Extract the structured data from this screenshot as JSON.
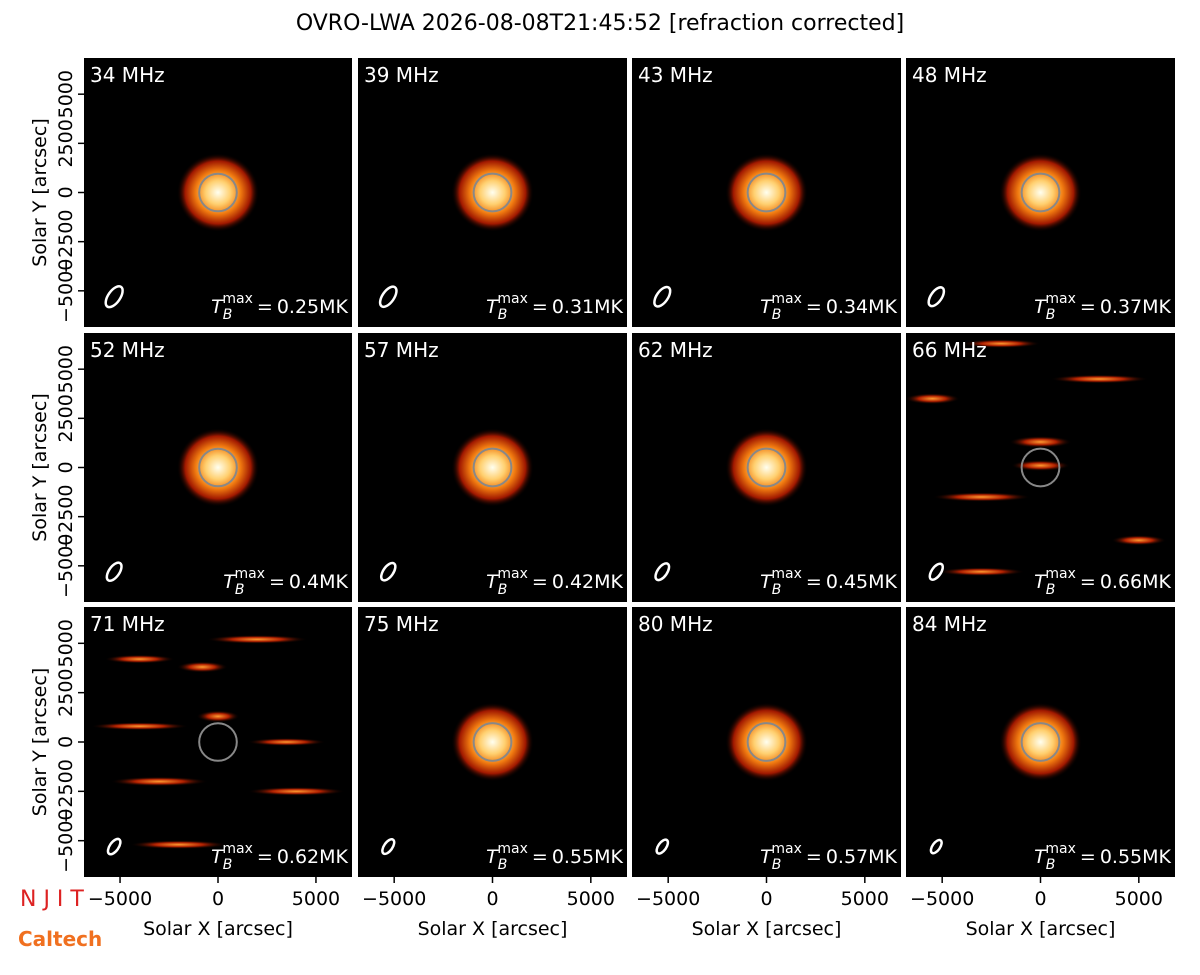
{
  "chart_data": {
    "type": "image-grid",
    "title": "OVRO-LWA 2026-08-08T21:45:52 [refraction corrected]",
    "xlabel": "Solar X [arcsec]",
    "ylabel": "Solar Y [arcsec]",
    "xlim": [
      -6840,
      6840
    ],
    "ylim": [
      -6840,
      6840
    ],
    "xticks": [
      {
        "value": -5000,
        "label": "−5000"
      },
      0,
      5000
    ],
    "yticks": [
      {
        "value": -5000,
        "label": "−5000"
      },
      {
        "value": -2500,
        "label": "−2500"
      },
      0,
      2500,
      5000
    ],
    "tmax_symbol": {
      "base": "T",
      "sub": "B",
      "sup": "max",
      "eq": "="
    },
    "panels": [
      {
        "label": "34 MHz",
        "tmax": "0.25MK"
      },
      {
        "label": "39 MHz",
        "tmax": "0.31MK"
      },
      {
        "label": "43 MHz",
        "tmax": "0.34MK"
      },
      {
        "label": "48 MHz",
        "tmax": "0.37MK"
      },
      {
        "label": "52 MHz",
        "tmax": "0.4MK"
      },
      {
        "label": "57 MHz",
        "tmax": "0.42MK"
      },
      {
        "label": "62 MHz",
        "tmax": "0.45MK"
      },
      {
        "label": "66 MHz",
        "tmax": "0.66MK"
      },
      {
        "label": "71 MHz",
        "tmax": "0.62MK"
      },
      {
        "label": "75 MHz",
        "tmax": "0.55MK"
      },
      {
        "label": "80 MHz",
        "tmax": "0.57MK"
      },
      {
        "label": "84 MHz",
        "tmax": "0.55MK"
      }
    ]
  },
  "logos": {
    "njit": "N J I T",
    "caltech": "Caltech"
  }
}
